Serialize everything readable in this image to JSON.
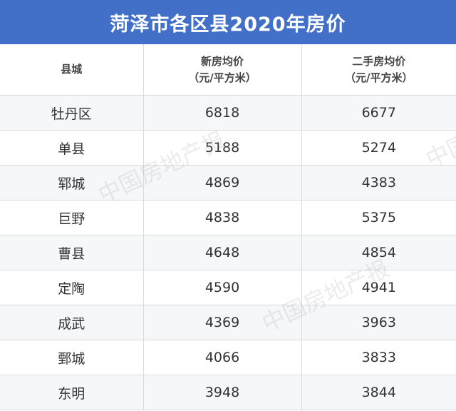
{
  "title": "菏泽市各区县2020年房价",
  "headers": {
    "county": "县城",
    "new_price": "新房均价",
    "new_unit": "（元/平方米）",
    "used_price": "二手房均价",
    "used_unit": "（元/平方米）"
  },
  "rows": [
    {
      "county": "牡丹区",
      "new": "6818",
      "used": "6677"
    },
    {
      "county": "单县",
      "new": "5188",
      "used": "5274"
    },
    {
      "county": "郓城",
      "new": "4869",
      "used": "4383"
    },
    {
      "county": "巨野",
      "new": "4838",
      "used": "5375"
    },
    {
      "county": "曹县",
      "new": "4648",
      "used": "4854"
    },
    {
      "county": "定陶",
      "new": "4590",
      "used": "4941"
    },
    {
      "county": "成武",
      "new": "4369",
      "used": "3963"
    },
    {
      "county": "鄄城",
      "new": "4066",
      "used": "3833"
    },
    {
      "county": "东明",
      "new": "3948",
      "used": "3844"
    }
  ],
  "watermark": "中国房地产报",
  "colors": {
    "title_bg": "#4270c8",
    "stripe": "#f5f7f9"
  }
}
